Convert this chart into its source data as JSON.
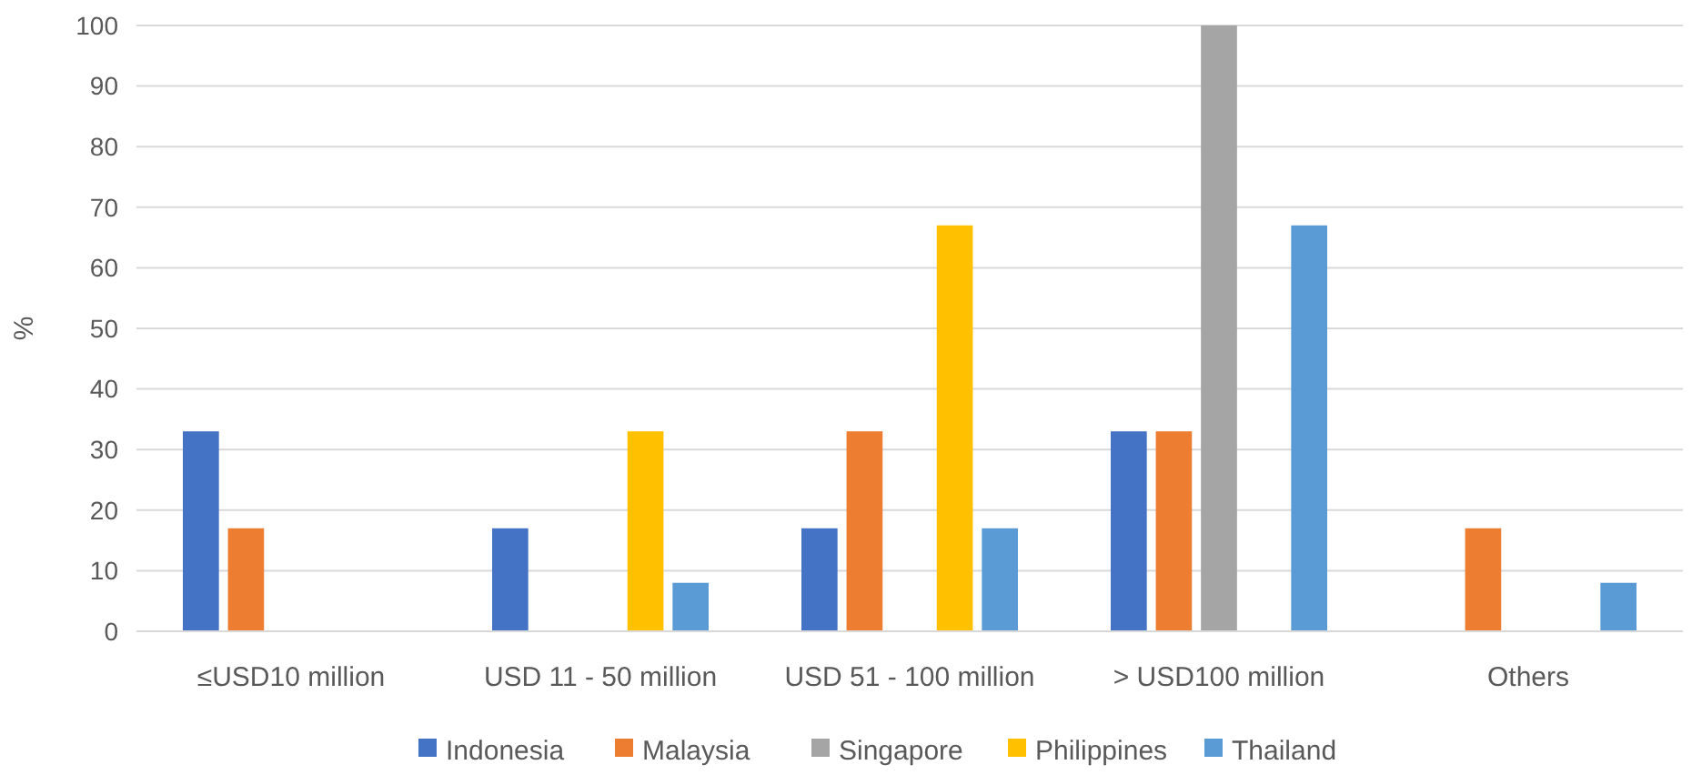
{
  "chart_data": {
    "type": "bar",
    "ylabel": "%",
    "categories": [
      "≤USD10 million",
      "USD 11 - 50 million",
      "USD 51 - 100 million",
      "> USD100 million",
      "Others"
    ],
    "series": [
      {
        "name": "Indonesia",
        "color": "#4472c4",
        "values": [
          33,
          17,
          17,
          33,
          0
        ]
      },
      {
        "name": "Malaysia",
        "color": "#ed7d31",
        "values": [
          17,
          0,
          33,
          33,
          17
        ]
      },
      {
        "name": "Singapore",
        "color": "#a5a5a5",
        "values": [
          0,
          0,
          0,
          100,
          0
        ]
      },
      {
        "name": "Philippines",
        "color": "#ffc000",
        "values": [
          0,
          33,
          67,
          0,
          0
        ]
      },
      {
        "name": "Thailand",
        "color": "#5b9bd5",
        "values": [
          0,
          8,
          17,
          67,
          8
        ]
      }
    ],
    "ylim": [
      0,
      100
    ],
    "yticks": [
      0,
      10,
      20,
      30,
      40,
      50,
      60,
      70,
      80,
      90,
      100
    ],
    "grid": "y",
    "legend": "bottom"
  }
}
